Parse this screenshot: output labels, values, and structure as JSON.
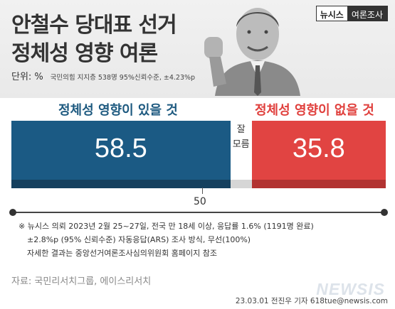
{
  "header": {
    "title_line1": "안철수 당대표 선거",
    "title_line2": "정체성 영향 여론",
    "brand_part1": "뉴시스",
    "brand_part2": "여론조사"
  },
  "unit": {
    "label": "단위:",
    "value": "%",
    "meta": "국민의힘 지지층 538명  95%신뢰수준, ±4.23%p"
  },
  "chart_data": {
    "type": "bar",
    "orientation": "horizontal-stacked",
    "categories": [
      "정체성 영향이 있을 것",
      "잘 모름",
      "정체성 영향이 없을 것"
    ],
    "values": [
      58.5,
      5.7,
      35.8
    ],
    "value_labels": [
      "58.5",
      "",
      "35.8"
    ],
    "dontknow_label_line1": "잘",
    "dontknow_label_line2": "모름",
    "midpoint_label": "50",
    "colors": [
      "#1b5a84",
      "#ffffff",
      "#e14442"
    ],
    "shadow_colors": [
      "#15405e",
      "#d6d6d6",
      "#b23331"
    ],
    "xlim": [
      0,
      100
    ]
  },
  "notes": {
    "line1": "※  뉴시스 의뢰 2023년 2월 25~27일, 전국 만 18세 이상, 응답률 1.6% (1191명 완료)",
    "line2": "±2.8%p (95% 신뢰수준) 자동응답(ARS) 조사 방식, 무선(100%)",
    "line3": "자세한 결과는 중앙선거여론조사심의위원회 홈페이지 참조"
  },
  "source": "자료: 국민리서치그룹, 에이스리서치",
  "watermark": "NEWSIS",
  "credit": "23.03.01  전진우  기자  618tue@newsis.com"
}
